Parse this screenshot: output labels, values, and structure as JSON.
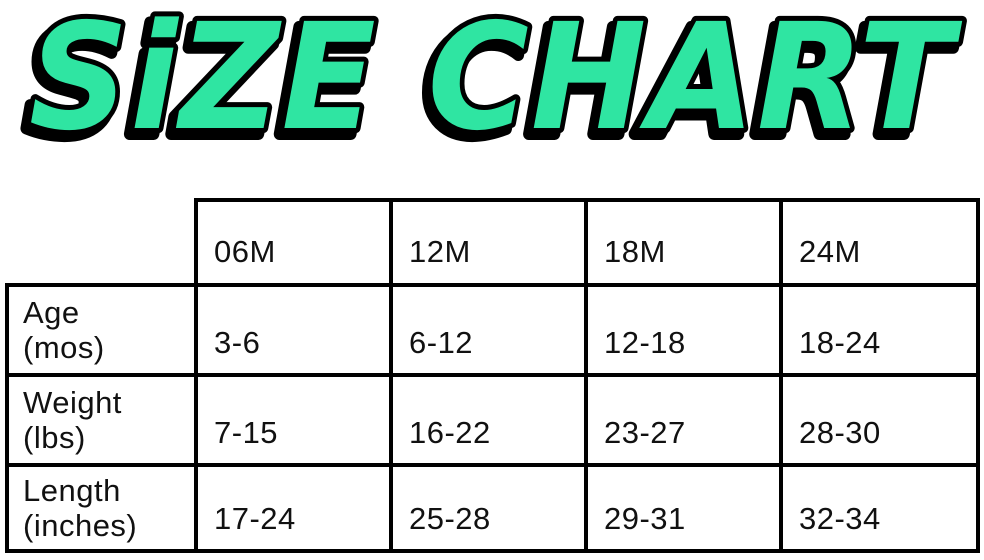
{
  "title": "SIZE CHART",
  "title_display": "SiZE CHART",
  "colors": {
    "title_fill": "#2FE5A2",
    "title_outline": "#000000",
    "table_border": "#000000",
    "text": "#111111",
    "background": "#FFFFFF"
  },
  "chart_data": {
    "type": "table",
    "title": "SIZE CHART",
    "column_headers": [
      "06M",
      "12M",
      "18M",
      "24M"
    ],
    "rows": [
      {
        "label": "Age (mos)",
        "label_lines": [
          "Age",
          "(mos)"
        ],
        "values": [
          "3-6",
          "6-12",
          "12-18",
          "18-24"
        ]
      },
      {
        "label": "Weight (lbs)",
        "label_lines": [
          "Weight",
          "(lbs)"
        ],
        "values": [
          "7-15",
          "16-22",
          "23-27",
          "28-30"
        ]
      },
      {
        "label": "Length (inches)",
        "label_lines": [
          "Length",
          "(inches)"
        ],
        "values": [
          "17-24",
          "25-28",
          "29-31",
          "32-34"
        ]
      }
    ]
  }
}
